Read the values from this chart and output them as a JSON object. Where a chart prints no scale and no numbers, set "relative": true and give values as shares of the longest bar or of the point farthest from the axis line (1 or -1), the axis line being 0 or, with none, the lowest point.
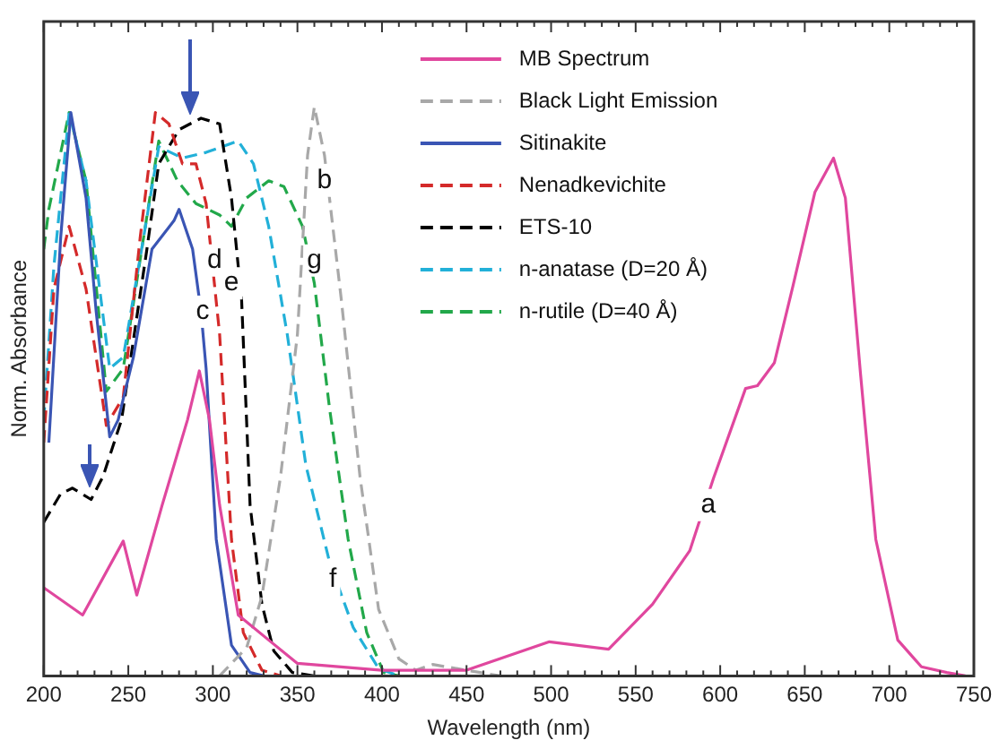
{
  "chart_data": {
    "type": "line",
    "relative": true,
    "xlabel": "Wavelength (nm)",
    "ylabel": "Norm. Absorbance",
    "xlim": [
      200,
      750
    ],
    "xticks": [
      200,
      {
        "value": 210,
        "label": null
      },
      {
        "value": 220,
        "label": null
      },
      {
        "value": 230,
        "label": null
      },
      {
        "value": 240,
        "label": null
      },
      250,
      {
        "value": 260,
        "label": null
      },
      {
        "value": 270,
        "label": null
      },
      {
        "value": 280,
        "label": null
      },
      {
        "value": 290,
        "label": null
      },
      300,
      {
        "value": 310,
        "label": null
      },
      {
        "value": 320,
        "label": null
      },
      {
        "value": 330,
        "label": null
      },
      {
        "value": 340,
        "label": null
      },
      350,
      {
        "value": 360,
        "label": null
      },
      {
        "value": 370,
        "label": null
      },
      {
        "value": 380,
        "label": null
      },
      {
        "value": 390,
        "label": null
      },
      400,
      {
        "value": 410,
        "label": null
      },
      {
        "value": 420,
        "label": null
      },
      {
        "value": 430,
        "label": null
      },
      {
        "value": 440,
        "label": null
      },
      450,
      {
        "value": 460,
        "label": null
      },
      {
        "value": 470,
        "label": null
      },
      {
        "value": 480,
        "label": null
      },
      {
        "value": 490,
        "label": null
      },
      500,
      {
        "value": 510,
        "label": null
      },
      {
        "value": 520,
        "label": null
      },
      {
        "value": 530,
        "label": null
      },
      {
        "value": 540,
        "label": null
      },
      550,
      {
        "value": 560,
        "label": null
      },
      {
        "value": 570,
        "label": null
      },
      {
        "value": 580,
        "label": null
      },
      {
        "value": 590,
        "label": null
      },
      600,
      {
        "value": 610,
        "label": null
      },
      {
        "value": 620,
        "label": null
      },
      {
        "value": 630,
        "label": null
      },
      {
        "value": 640,
        "label": null
      },
      650,
      {
        "value": 660,
        "label": null
      },
      {
        "value": 670,
        "label": null
      },
      {
        "value": 680,
        "label": null
      },
      {
        "value": 690,
        "label": null
      },
      700,
      {
        "value": 710,
        "label": null
      },
      {
        "value": 720,
        "label": null
      },
      {
        "value": 730,
        "label": null
      },
      {
        "value": 740,
        "label": null
      },
      750
    ],
    "grid": false,
    "legend": "top",
    "marker": "none",
    "series": [
      {
        "name": "MB Spectrum",
        "color": "#e0479e",
        "line_style": "solid",
        "x": [
          200,
          223,
          247,
          255,
          270,
          285,
          292,
          298,
          304,
          315,
          333,
          350,
          400,
          450,
          499,
          534,
          560,
          582,
          596,
          615,
          622,
          632,
          643,
          656,
          667,
          674,
          683,
          692,
          705,
          719,
          734,
          745
        ],
        "values": [
          0.155,
          0.107,
          0.237,
          0.142,
          0.3,
          0.45,
          0.536,
          0.45,
          0.3,
          0.107,
          0.063,
          0.022,
          0.01,
          0.01,
          0.06,
          0.047,
          0.126,
          0.22,
          0.347,
          0.505,
          0.51,
          0.55,
          0.685,
          0.85,
          0.91,
          0.84,
          0.53,
          0.24,
          0.063,
          0.016,
          0.006,
          0
        ]
      },
      {
        "name": "Black Light Emission",
        "color": "#a8a8a8",
        "line_style": "dashed",
        "x": [
          304,
          320,
          329,
          340,
          350,
          356,
          360,
          366,
          376,
          387,
          398,
          410,
          420,
          430,
          450,
          470
        ],
        "values": [
          0,
          0.05,
          0.14,
          0.35,
          0.6,
          0.915,
          1,
          0.915,
          0.66,
          0.35,
          0.117,
          0.03,
          0.01,
          0.02,
          0.01,
          0
        ]
      },
      {
        "name": "Sitinakite",
        "color": "#3a55b4",
        "line_style": "solid",
        "x": [
          203,
          210,
          216,
          225,
          231,
          239,
          244,
          253,
          264,
          277,
          280,
          288,
          293,
          296,
          302,
          311,
          322,
          330
        ],
        "values": [
          0.41,
          0.77,
          0.99,
          0.84,
          0.64,
          0.42,
          0.45,
          0.56,
          0.75,
          0.8,
          0.82,
          0.75,
          0.64,
          0.54,
          0.24,
          0.054,
          0.006,
          0
        ]
      },
      {
        "name": "Nenadkevichite",
        "color": "#d42a2a",
        "line_style": "dashed",
        "x": [
          200,
          206,
          215,
          225,
          237,
          247,
          257,
          266,
          274,
          282,
          290,
          296,
          304,
          311,
          318,
          329,
          340
        ],
        "values": [
          0.41,
          0.68,
          0.79,
          0.68,
          0.44,
          0.49,
          0.77,
          0.99,
          0.97,
          0.9,
          0.9,
          0.83,
          0.6,
          0.24,
          0.076,
          0.01,
          0
        ]
      },
      {
        "name": "ETS-10",
        "color": "#000000",
        "line_style": "dashed",
        "x": [
          200,
          210,
          217,
          228,
          235,
          246,
          261,
          268,
          280,
          293,
          304,
          311,
          317,
          322,
          329,
          336,
          347,
          360
        ],
        "values": [
          0.27,
          0.32,
          0.33,
          0.31,
          0.35,
          0.45,
          0.75,
          0.9,
          0.96,
          0.98,
          0.97,
          0.84,
          0.66,
          0.3,
          0.126,
          0.044,
          0.006,
          0
        ]
      },
      {
        "name": "n-anatase (D=20 Å)",
        "color": "#22b0d8",
        "line_style": "dashed",
        "x": [
          200,
          206,
          215,
          225,
          239,
          247,
          259,
          268,
          282,
          296,
          315,
          324,
          333,
          344,
          355,
          369,
          383,
          398,
          410
        ],
        "values": [
          0.45,
          0.72,
          0.99,
          0.87,
          0.54,
          0.56,
          0.77,
          0.93,
          0.91,
          0.92,
          0.94,
          0.9,
          0.79,
          0.6,
          0.37,
          0.2,
          0.085,
          0.013,
          0
        ]
      },
      {
        "name": "n-rutile (D=40 Å)",
        "color": "#22a84a",
        "line_style": "dashed",
        "x": [
          200,
          203,
          215,
          225,
          237,
          247,
          259,
          268,
          279,
          290,
          304,
          311,
          320,
          333,
          342,
          353,
          360,
          369,
          380,
          391,
          401,
          410
        ],
        "values": [
          0.75,
          0.82,
          0.99,
          0.87,
          0.5,
          0.54,
          0.77,
          0.94,
          0.87,
          0.83,
          0.81,
          0.79,
          0.84,
          0.87,
          0.86,
          0.79,
          0.69,
          0.47,
          0.24,
          0.076,
          0.006,
          0
        ]
      }
    ],
    "annotations": [
      {
        "text": "a",
        "x": 593,
        "y": 0.3
      },
      {
        "text": "b",
        "x": 366,
        "y": 0.87
      },
      {
        "text": "c",
        "x": 294,
        "y": 0.64
      },
      {
        "text": "d",
        "x": 301,
        "y": 0.73
      },
      {
        "text": "e",
        "x": 311,
        "y": 0.69
      },
      {
        "text": "f",
        "x": 371,
        "y": 0.17
      },
      {
        "text": "g",
        "x": 360,
        "y": 0.73
      }
    ]
  }
}
